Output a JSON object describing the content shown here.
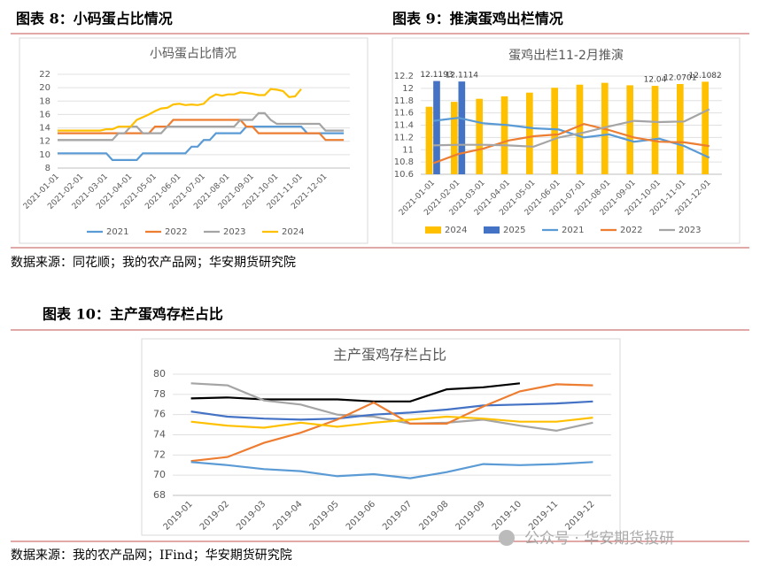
{
  "heading_1": "图表 8：小码蛋占比情况",
  "heading_2": "图表 9：推演蛋鸡出栏情况",
  "source_1": "数据来源：同花顺；我的农产品网；华安期货研究院",
  "heading_3": "图表 10：主产蛋鸡存栏占比",
  "source_2": "数据来源：我的农产品网；IFind；华安期货研究院",
  "watermark": "公众号 · 华安期货投研",
  "chart_data": [
    {
      "type": "line",
      "title": "小码蛋占比情况",
      "categories": [
        "2021-01-01",
        null,
        null,
        null,
        "2021-02-01",
        null,
        null,
        null,
        "2021-03-01",
        null,
        null,
        null,
        "2021-04-01",
        null,
        null,
        null,
        "2021-05-01",
        null,
        null,
        null,
        "2021-06-01",
        null,
        null,
        null,
        "2021-07-01",
        null,
        null,
        null,
        "2021-08-01",
        null,
        null,
        null,
        "2021-09-01",
        null,
        null,
        null,
        "2021-10-01",
        null,
        null,
        null,
        "2021-11-01",
        null,
        null,
        null,
        "2021-12-01",
        null,
        null,
        null
      ],
      "ylim": [
        8,
        22
      ],
      "yticks": [
        8,
        10,
        12,
        14,
        16,
        18,
        20,
        22
      ],
      "grid": true,
      "legend": "bottom",
      "series": [
        {
          "name": "2021",
          "color": "#5b9bd5",
          "values": [
            10.2,
            10.2,
            10.2,
            10.2,
            10.2,
            10.2,
            10.2,
            10.2,
            10.2,
            9.2,
            9.2,
            9.2,
            9.2,
            9.2,
            10.2,
            10.2,
            10.2,
            10.2,
            10.2,
            10.2,
            10.2,
            10.2,
            11.2,
            11.2,
            12.2,
            12.2,
            13.2,
            13.2,
            13.2,
            13.2,
            13.2,
            14.2,
            14.2,
            14.2,
            14.2,
            14.2,
            14.2,
            14.2,
            14.2,
            14.2,
            14.2,
            13.2,
            13.2,
            13.2,
            13.2,
            13.2,
            13.2,
            13.2
          ]
        },
        {
          "name": "2022",
          "color": "#ed7d31",
          "values": [
            13.2,
            13.2,
            13.2,
            13.2,
            13.2,
            13.2,
            13.2,
            13.2,
            13.2,
            13.2,
            13.2,
            13.2,
            13.2,
            13.2,
            13.2,
            13.2,
            14.2,
            14.2,
            14.2,
            15.2,
            15.2,
            15.2,
            15.2,
            15.2,
            15.2,
            15.2,
            15.2,
            15.2,
            15.2,
            15.2,
            15.2,
            14.2,
            14.2,
            13.2,
            13.2,
            13.2,
            13.2,
            13.2,
            13.2,
            13.2,
            13.2,
            13.2,
            13.2,
            13.2,
            12.2,
            12.2,
            12.2,
            12.2
          ]
        },
        {
          "name": "2023",
          "color": "#a5a5a5",
          "values": [
            12.2,
            12.2,
            12.2,
            12.2,
            12.2,
            12.2,
            12.2,
            12.2,
            12.2,
            12.2,
            13.2,
            13.2,
            14.2,
            14.2,
            13.2,
            13.2,
            13.2,
            13.2,
            14.2,
            14.2,
            14.2,
            14.2,
            14.2,
            14.2,
            14.2,
            14.2,
            14.2,
            14.2,
            14.2,
            14.2,
            15.2,
            15.2,
            15.2,
            16.2,
            16.2,
            15.2,
            14.6,
            14.6,
            14.6,
            14.6,
            14.6,
            14.6,
            14.6,
            14.6,
            13.6,
            13.6,
            13.6,
            13.6
          ]
        },
        {
          "name": "2024",
          "color": "#ffc000",
          "values": [
            13.6,
            13.6,
            13.6,
            13.6,
            13.6,
            13.6,
            13.6,
            13.6,
            13.8,
            13.8,
            14.2,
            14.2,
            14.2,
            15.2,
            15.6,
            16,
            16.5,
            16.9,
            17,
            17.5,
            17.6,
            17.4,
            17.5,
            17.4,
            17.6,
            18.5,
            19,
            18.8,
            19,
            19,
            19.3,
            19.2,
            19.1,
            18.9,
            18.9,
            19.8,
            19.7,
            19.5,
            18.6,
            18.7,
            19.8,
            null,
            null,
            null,
            null,
            null,
            null,
            null
          ]
        }
      ]
    },
    {
      "type": "bar",
      "title": "蛋鸡出栏11-2月推演",
      "categories": [
        "2021-01-01",
        "2021-02-01",
        "2021-03-01",
        "2021-04-01",
        "2021-05-01",
        "2021-06-01",
        "2021-07-01",
        "2021-08-01",
        "2021-09-01",
        "2021-10-01",
        "2021-11-01",
        "2021-12-01"
      ],
      "ylim": [
        10.6,
        12.2
      ],
      "yticks": [
        10.6,
        10.8,
        11,
        11.2,
        11.4,
        11.6,
        11.8,
        12,
        12.2
      ],
      "grid": true,
      "legend": "bottom",
      "series": [
        {
          "name": "2024",
          "type": "bar",
          "color": "#ffc000",
          "values": [
            11.7,
            11.78,
            11.83,
            11.87,
            11.93,
            12.01,
            12.06,
            12.09,
            12.05,
            12.04,
            12.0701,
            12.1082
          ],
          "value_labels": [
            null,
            null,
            null,
            null,
            null,
            null,
            null,
            null,
            null,
            "12.04",
            "12.0701",
            "12.1082"
          ]
        },
        {
          "name": "2025",
          "type": "bar",
          "color": "#4472c4",
          "values": [
            12.1193,
            12.1114,
            null,
            null,
            null,
            null,
            null,
            null,
            null,
            null,
            null,
            null
          ],
          "value_labels": [
            "12.1193",
            "12.1114",
            null,
            null,
            null,
            null,
            null,
            null,
            null,
            null,
            null,
            null
          ]
        },
        {
          "name": "2021",
          "type": "line",
          "color": "#5b9bd5",
          "values": [
            11.47,
            11.52,
            11.43,
            11.4,
            11.35,
            11.33,
            11.2,
            11.25,
            11.13,
            11.18,
            11.06,
            10.87
          ]
        },
        {
          "name": "2022",
          "type": "line",
          "color": "#ed7d31",
          "values": [
            10.78,
            10.93,
            11.02,
            11.15,
            11.22,
            11.25,
            11.42,
            11.32,
            11.2,
            11.13,
            11.12,
            11.06
          ]
        },
        {
          "name": "2023",
          "type": "line",
          "color": "#a5a5a5",
          "values": [
            11.07,
            11.08,
            11.08,
            11.07,
            11.05,
            11.2,
            11.28,
            11.38,
            11.47,
            11.45,
            11.46,
            11.66
          ]
        }
      ]
    },
    {
      "type": "line",
      "title": "主产蛋鸡存栏占比",
      "categories": [
        "2019-01",
        "2019-02",
        "2019-03",
        "2019-04",
        "2019-05",
        "2019-06",
        "2019-07",
        "2019-08",
        "2019-09",
        "2019-10",
        "2019-11",
        "2019-12"
      ],
      "ylim": [
        68,
        80
      ],
      "yticks": [
        68,
        70,
        72,
        74,
        76,
        78,
        80
      ],
      "grid": true,
      "series": [
        {
          "color": "#000000",
          "values": [
            77.6,
            77.7,
            77.5,
            77.5,
            77.5,
            77.3,
            77.3,
            78.5,
            78.7,
            79.1,
            null,
            null
          ]
        },
        {
          "color": "#a5a5a5",
          "values": [
            79.1,
            78.9,
            77.4,
            77.0,
            76.0,
            75.8,
            75.1,
            75.2,
            75.5,
            74.9,
            74.4,
            75.2
          ]
        },
        {
          "color": "#4472c4",
          "values": [
            76.3,
            75.8,
            75.6,
            75.5,
            75.6,
            76.0,
            76.2,
            76.5,
            76.9,
            77.0,
            77.1,
            77.3
          ]
        },
        {
          "color": "#ed7d31",
          "values": [
            71.4,
            71.8,
            73.2,
            74.2,
            75.5,
            77.2,
            75.1,
            75.1,
            76.8,
            78.3,
            79.0,
            78.9
          ]
        },
        {
          "color": "#ffc000",
          "values": [
            75.3,
            74.9,
            74.7,
            75.2,
            74.8,
            75.2,
            75.5,
            75.8,
            75.6,
            75.3,
            75.3,
            75.7
          ]
        },
        {
          "color": "#5b9bd5",
          "values": [
            71.3,
            71.0,
            70.6,
            70.4,
            69.9,
            70.1,
            69.7,
            70.3,
            71.1,
            71.0,
            71.1,
            71.3
          ]
        }
      ]
    }
  ]
}
